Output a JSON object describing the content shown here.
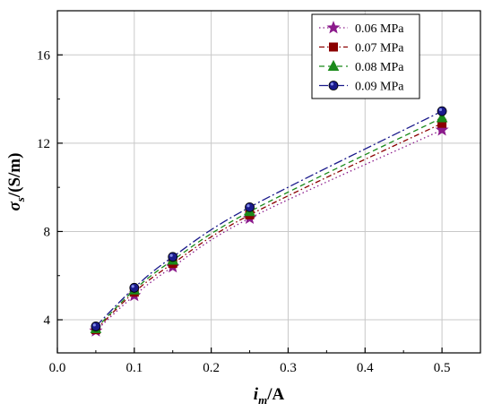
{
  "chart_data": {
    "type": "line",
    "title": "",
    "xlabel": {
      "main": "i",
      "sub": "m",
      "unit": "/A"
    },
    "ylabel": {
      "main": "σ",
      "sub": "s",
      "unit": "/(S/m)"
    },
    "xlim": [
      0.0,
      0.55
    ],
    "ylim": [
      2.5,
      18.0
    ],
    "xticks": [
      "0.0",
      "0.1",
      "0.2",
      "0.3",
      "0.4",
      "0.5"
    ],
    "xtick_values": [
      0.0,
      0.1,
      0.2,
      0.3,
      0.4,
      0.5
    ],
    "yticks": [
      "4",
      "8",
      "12",
      "16"
    ],
    "ytick_values": [
      4,
      8,
      12,
      16
    ],
    "grid": true,
    "legend_position": "top-right",
    "x": [
      0.05,
      0.1,
      0.15,
      0.25,
      0.5
    ],
    "series": [
      {
        "name": "0.06 MPa",
        "values": [
          3.5,
          5.1,
          6.4,
          8.6,
          12.6
        ],
        "color": "#8b1a8b",
        "marker": "star",
        "dash": "dotted"
      },
      {
        "name": "0.07 MPa",
        "values": [
          3.55,
          5.25,
          6.55,
          8.75,
          12.9
        ],
        "color": "#8b0000",
        "marker": "square",
        "dash": "dashdot"
      },
      {
        "name": "0.08 MPa",
        "values": [
          3.6,
          5.35,
          6.7,
          8.9,
          13.15
        ],
        "color": "#1a8a1a",
        "marker": "triangle",
        "dash": "dashed"
      },
      {
        "name": "0.09 MPa",
        "values": [
          3.7,
          5.45,
          6.85,
          9.1,
          13.45
        ],
        "color": "#1a1a8b",
        "marker": "circle",
        "dash": "dashdotlong"
      }
    ]
  }
}
